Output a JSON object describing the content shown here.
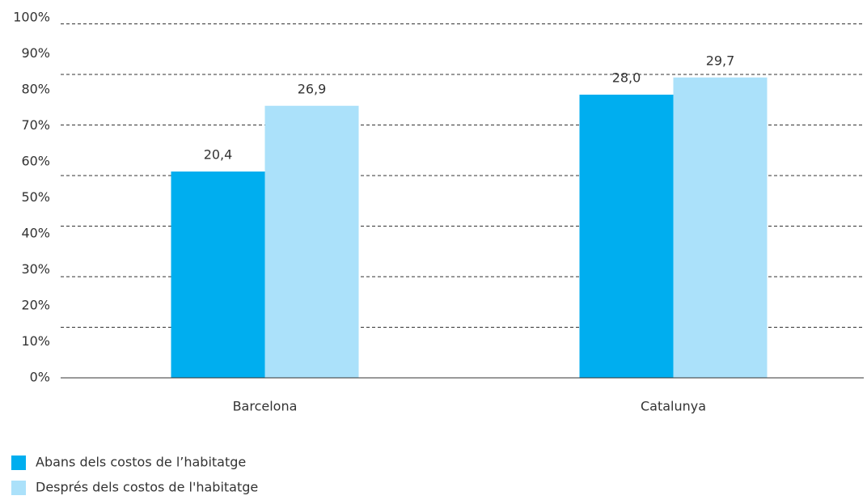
{
  "chart_data": {
    "type": "bar",
    "categories": [
      "Barcelona",
      "Catalunya"
    ],
    "series": [
      {
        "name": "Abans dels costos de l’habitatge",
        "color": "#00aeef",
        "values": [
          20.4,
          28.0
        ],
        "value_labels": [
          "20,4",
          "28,0"
        ]
      },
      {
        "name": "Després dels costos de l'habitatge",
        "color": "#abe1fa",
        "values": [
          26.9,
          29.7
        ],
        "value_labels": [
          "26,9",
          "29,7"
        ]
      }
    ],
    "ylim": [
      0,
      35.6
    ],
    "yticks": [
      5,
      10,
      15,
      20,
      25,
      30,
      35
    ],
    "grid": true,
    "y2lim": [
      0,
      100
    ],
    "y2ticks": [
      {
        "value": 0,
        "label": "0%"
      },
      {
        "value": 10,
        "label": "10%"
      },
      {
        "value": 20,
        "label": "20%"
      },
      {
        "value": 30,
        "label": "30%"
      },
      {
        "value": 40,
        "label": "40%"
      },
      {
        "value": 50,
        "label": "50%"
      },
      {
        "value": 60,
        "label": "60%"
      },
      {
        "value": 70,
        "label": "70%"
      },
      {
        "value": 80,
        "label": "80%"
      },
      {
        "value": 90,
        "label": "90%"
      },
      {
        "value": 100,
        "label": "100%"
      }
    ],
    "legend": "bottom-left"
  }
}
